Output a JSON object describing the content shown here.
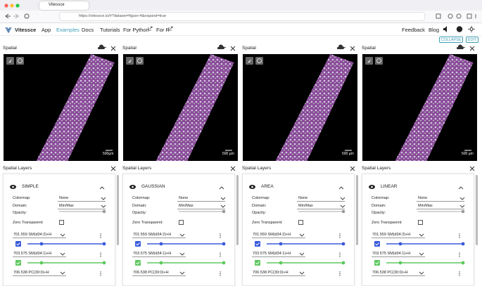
{
  "browser": {
    "tab_title": "Vitessce",
    "url": "https://vitessce.io/#?dataset=figure-4&expand=true"
  },
  "nav": {
    "brand": "Vitessce",
    "links": [
      "App",
      "Examples",
      "Docs",
      "Tutorials",
      "For Python",
      "For R"
    ],
    "right_links": [
      "Feedback",
      "Blog"
    ]
  },
  "toolbar": {
    "buttons": [
      "COLLAPSE",
      "EDIT"
    ]
  },
  "columns": [
    {
      "spatial_title": "Spatial",
      "scale_label": "500μm",
      "layers_title": "Spatial Layers",
      "layer_name": "SIMPLE",
      "fields": [
        {
          "label": "Colormap:",
          "value": "None"
        },
        {
          "label": "Domain:",
          "value": "Min/Max"
        },
        {
          "label": "Opacity:"
        },
        {
          "label": "Zero Transparent:"
        }
      ],
      "channels": [
        "701.559 SM(d34:2)+H",
        "703.575 SM(d34:1)+H",
        "706.538 PC(30:0)+H"
      ]
    },
    {
      "spatial_title": "Spatial",
      "scale_label": "500 µm",
      "layers_title": "Spatial Layers",
      "layer_name": "GAUSSIAN",
      "fields": [
        {
          "label": "Colormap:",
          "value": "None"
        },
        {
          "label": "Domain:",
          "value": "Min/Max"
        },
        {
          "label": "Opacity:"
        },
        {
          "label": "Zero Transparent:"
        }
      ],
      "channels": [
        "701.559 SM(d34:2)+H",
        "703.575 SM(d34:1)+H",
        "706.538 PC(30:0)+H"
      ]
    },
    {
      "spatial_title": "Spatial",
      "scale_label": "500 µm",
      "layers_title": "Spatial Layers",
      "layer_name": "AREA",
      "fields": [
        {
          "label": "Colormap:",
          "value": "None"
        },
        {
          "label": "Domain:",
          "value": "Min/Max"
        },
        {
          "label": "Opacity:"
        },
        {
          "label": "Zero Transparent:"
        }
      ],
      "channels": [
        "701.559 SM(d34:2)+H",
        "703.575 SM(d34:1)+H",
        "706.538 PC(30:0)+H"
      ]
    },
    {
      "spatial_title": "Spatial",
      "scale_label": "500 µm",
      "layers_title": "Spatial Layers",
      "layer_name": "LINEAR",
      "fields": [
        {
          "label": "Colormap:",
          "value": "None"
        },
        {
          "label": "Domain:",
          "value": "Min/Max"
        },
        {
          "label": "Opacity:"
        },
        {
          "label": "Zero Transparent:"
        }
      ],
      "channels": [
        "701.559 SM(d34:2)+H",
        "703.575 SM(d34:1)+H",
        "706.538 PC(30:0)+H"
      ]
    }
  ]
}
